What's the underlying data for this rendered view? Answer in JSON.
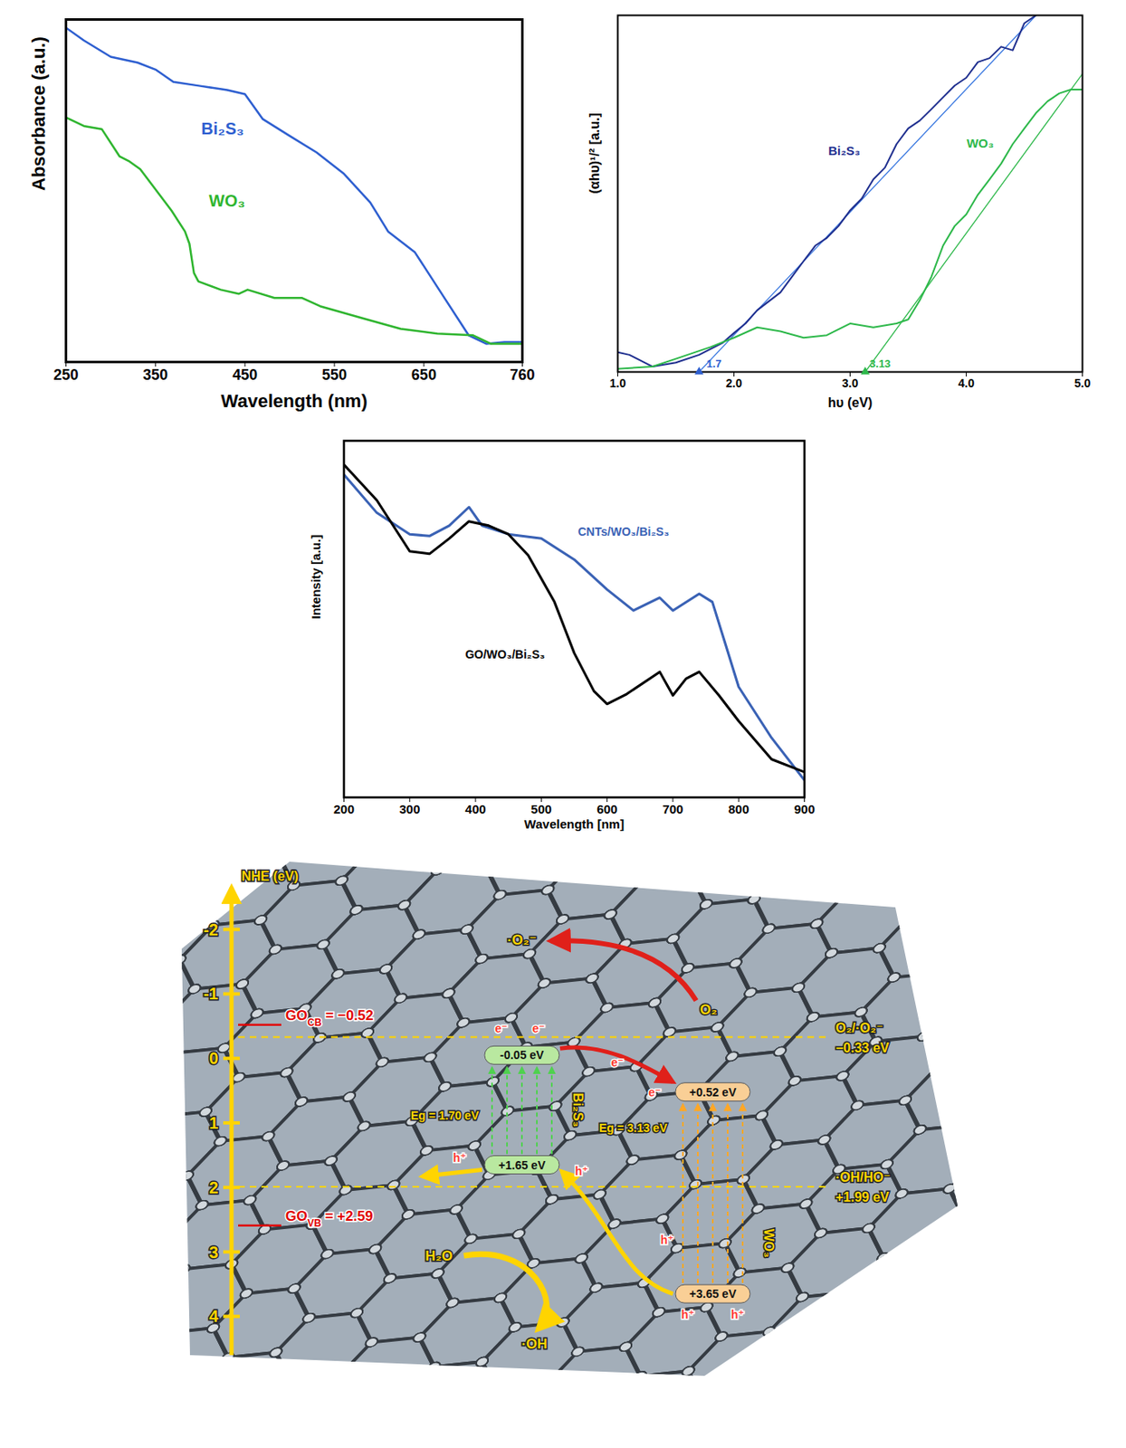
{
  "chart_data": [
    {
      "type": "line",
      "xlabel": "Wavelength (nm)",
      "ylabel": "Absorbance (a.u.)",
      "xlim": [
        250,
        760
      ],
      "xticks": [
        250,
        350,
        450,
        550,
        650,
        760
      ],
      "ylim": [
        0,
        1
      ],
      "yticks": [],
      "tick_labels": "x",
      "series": [
        {
          "name": "Bi₂S₃",
          "color": "#2e5fd0",
          "x": [
            250,
            270,
            300,
            330,
            350,
            370,
            400,
            430,
            450,
            470,
            500,
            530,
            560,
            590,
            610,
            640,
            670,
            700,
            720,
            740,
            760
          ],
          "values": [
            0.976,
            0.939,
            0.891,
            0.874,
            0.854,
            0.818,
            0.806,
            0.794,
            0.782,
            0.709,
            0.66,
            0.612,
            0.551,
            0.466,
            0.381,
            0.32,
            0.199,
            0.078,
            0.053,
            0.058,
            0.058
          ]
        },
        {
          "name": "WO₃",
          "color": "#2fb52f",
          "x": [
            250,
            270,
            290,
            310,
            320,
            333,
            368,
            383,
            388,
            393,
            398,
            423,
            443,
            453,
            483,
            514,
            534,
            584,
            624,
            665,
            705,
            725,
            760
          ],
          "values": [
            0.714,
            0.689,
            0.68,
            0.6,
            0.587,
            0.563,
            0.442,
            0.381,
            0.345,
            0.26,
            0.235,
            0.211,
            0.199,
            0.211,
            0.187,
            0.187,
            0.163,
            0.126,
            0.097,
            0.083,
            0.078,
            0.053,
            0.053
          ]
        }
      ],
      "annotations": [
        {
          "text": "Bi₂S₃",
          "x": 425,
          "y": 0.68,
          "color": "#2e5fd0"
        },
        {
          "text": "WO₃",
          "x": 430,
          "y": 0.47,
          "color": "#2fb52f"
        }
      ]
    },
    {
      "type": "line",
      "xlabel": "hυ (eV)",
      "ylabel": "(αhυ)¹/² [a.u.]",
      "xlim": [
        1.0,
        5.0
      ],
      "xticks": [
        {
          "value": 1,
          "label": "1.0"
        },
        {
          "value": 2,
          "label": "2.0"
        },
        {
          "value": 3,
          "label": "3.0"
        },
        {
          "value": 4,
          "label": "4.0"
        },
        {
          "value": 5,
          "label": "5.0"
        }
      ],
      "ylim": [
        0,
        1
      ],
      "yticks": [],
      "tick_labels": "x",
      "series": [
        {
          "name": "Bi₂S₃",
          "color": "#1f2f8f",
          "x": [
            1.0,
            1.1,
            1.3,
            1.5,
            1.7,
            1.9,
            2.0,
            2.1,
            2.2,
            2.4,
            2.5,
            2.6,
            2.7,
            2.8,
            2.9,
            3.0,
            3.1,
            3.2,
            3.3,
            3.4,
            3.5,
            3.6,
            3.7,
            3.8,
            3.9,
            4.0,
            4.1,
            4.2,
            4.3,
            4.4,
            4.5,
            4.6
          ],
          "values": [
            0.055,
            0.048,
            0.015,
            0.026,
            0.048,
            0.081,
            0.109,
            0.136,
            0.173,
            0.223,
            0.267,
            0.311,
            0.354,
            0.376,
            0.409,
            0.453,
            0.486,
            0.54,
            0.573,
            0.639,
            0.683,
            0.705,
            0.737,
            0.77,
            0.803,
            0.825,
            0.869,
            0.88,
            0.912,
            0.902,
            0.978,
            1.0
          ]
        },
        {
          "name": "WO₃",
          "color": "#2db84a",
          "x": [
            1.0,
            1.3,
            1.5,
            1.8,
            2.0,
            2.2,
            2.4,
            2.6,
            2.8,
            3.0,
            3.2,
            3.4,
            3.5,
            3.6,
            3.7,
            3.8,
            3.9,
            4.0,
            4.1,
            4.2,
            4.3,
            4.4,
            4.5,
            4.6,
            4.7,
            4.8,
            4.9,
            5.0
          ],
          "values": [
            0.009,
            0.015,
            0.037,
            0.07,
            0.096,
            0.125,
            0.114,
            0.096,
            0.103,
            0.136,
            0.125,
            0.136,
            0.147,
            0.201,
            0.267,
            0.354,
            0.409,
            0.442,
            0.497,
            0.54,
            0.584,
            0.639,
            0.683,
            0.726,
            0.759,
            0.781,
            0.792,
            0.792
          ]
        }
      ],
      "fit_lines": [
        {
          "color": "#3a78e0",
          "x": [
            1.7,
            4.6
          ],
          "values": [
            0,
            1.0
          ]
        },
        {
          "color": "#2db84a",
          "x": [
            3.13,
            5.0
          ],
          "values": [
            0,
            0.836
          ]
        }
      ],
      "intercepts": [
        {
          "text": "1.7",
          "x": 1.7,
          "y": 0,
          "color": "#2e5fd0"
        },
        {
          "text": "3.13",
          "x": 3.13,
          "y": 0,
          "color": "#2db84a"
        }
      ],
      "annotations": [
        {
          "text": "Bi₂S₃",
          "x": 2.95,
          "y": 0.62,
          "color": "#1f2f8f"
        },
        {
          "text": "WO₃",
          "x": 4.12,
          "y": 0.64,
          "color": "#2db84a"
        }
      ]
    },
    {
      "type": "line",
      "xlabel": "Wavelength [nm]",
      "ylabel": "Intensity [a.u.]",
      "xlim": [
        200,
        900
      ],
      "xticks": [
        200,
        300,
        400,
        500,
        600,
        700,
        800,
        900
      ],
      "ylim": [
        0,
        1
      ],
      "yticks": [],
      "tick_labels": "x",
      "series": [
        {
          "name": "CNTs/WO₃/Bi₂S₃",
          "color": "#3a62b5",
          "x": [
            200,
            250,
            300,
            330,
            360,
            390,
            410,
            450,
            500,
            550,
            600,
            640,
            680,
            700,
            740,
            760,
            780,
            800,
            850,
            900
          ],
          "values": [
            0.905,
            0.798,
            0.738,
            0.733,
            0.762,
            0.814,
            0.762,
            0.738,
            0.726,
            0.667,
            0.583,
            0.524,
            0.56,
            0.524,
            0.571,
            0.548,
            0.429,
            0.31,
            0.167,
            0.048
          ]
        },
        {
          "name": "GO/WO₃/Bi₂S₃",
          "color": "#000000",
          "x": [
            200,
            250,
            300,
            330,
            360,
            390,
            420,
            450,
            480,
            520,
            550,
            580,
            600,
            630,
            680,
            700,
            720,
            740,
            770,
            800,
            850,
            900
          ],
          "values": [
            0.933,
            0.833,
            0.69,
            0.683,
            0.726,
            0.774,
            0.762,
            0.738,
            0.679,
            0.548,
            0.405,
            0.298,
            0.262,
            0.29,
            0.352,
            0.286,
            0.333,
            0.352,
            0.286,
            0.214,
            0.107,
            0.071
          ]
        }
      ],
      "annotations": [
        {
          "text": "CNTs/WO₃/Bi₂S₃",
          "x": 625,
          "y": 0.745,
          "color": "#3a62b5"
        },
        {
          "text": "GO/WO₃/Bi₂S₃",
          "x": 445,
          "y": 0.4,
          "color": "#000000"
        }
      ]
    }
  ],
  "diagram": {
    "axis": {
      "label": "NHE (eV)",
      "range": [
        -2.6,
        4.6
      ],
      "ticks": [
        -2,
        -1,
        0,
        1,
        2,
        3,
        4
      ]
    },
    "levels": [
      {
        "label": "GO",
        "sub": "CB",
        "text": " = −0.52",
        "value": -0.52,
        "color": "#e00000"
      },
      {
        "label": "GO",
        "sub": "VB",
        "text": " = +2.59",
        "value": 2.59,
        "color": "#e00000"
      }
    ],
    "semiconductors": [
      {
        "name": "Bi₂S₃",
        "cb": -0.05,
        "vb": 1.65,
        "cb_label": "-0.05 eV",
        "vb_label": "+1.65 eV",
        "eg_label": "Eg = 1.70 eV",
        "color": "#b9e8a0",
        "line_color": "#4fd14f"
      },
      {
        "name": "WO₃",
        "cb": 0.52,
        "vb": 3.65,
        "cb_label": "+0.52 eV",
        "vb_label": "+3.65 eV",
        "eg_label": "Eg = 3.13 eV",
        "color": "#f9cf96",
        "line_color": "#ffa726"
      }
    ],
    "potentials": [
      {
        "label": "O₂/·O₂⁻",
        "text": "−0.33 eV",
        "value": -0.33
      },
      {
        "label": "·OH/HO⁻",
        "text": "+1.99 eV",
        "value": 1.99
      }
    ],
    "species": [
      "·O₂⁻",
      "O₂",
      "H₂O",
      "·OH"
    ],
    "carriers": {
      "electron": "e⁻",
      "hole": "h⁺"
    }
  }
}
